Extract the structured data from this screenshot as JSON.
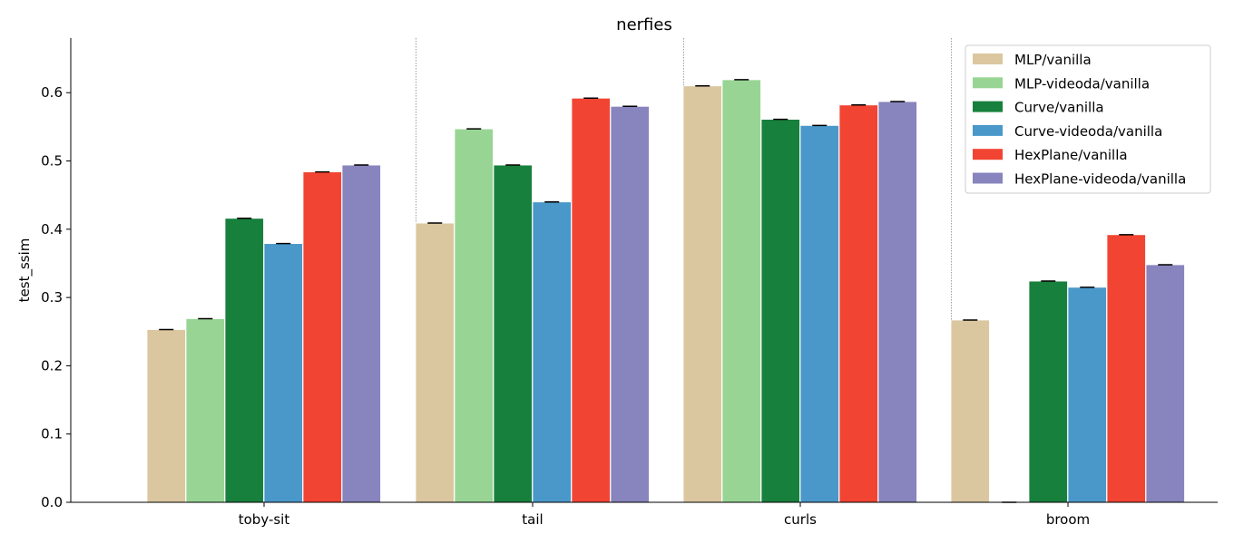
{
  "chart_data": {
    "type": "bar",
    "title": "nerfies",
    "xlabel": "",
    "ylabel": "test_ssim",
    "ylim": [
      0,
      0.68
    ],
    "yticks": [
      "0.0",
      "0.1",
      "0.2",
      "0.3",
      "0.4",
      "0.5",
      "0.6"
    ],
    "categories": [
      "toby-sit",
      "tail",
      "curls",
      "broom"
    ],
    "series": [
      {
        "name": "MLP/vanilla",
        "color": "#dbc79f",
        "values": [
          0.253,
          0.409,
          0.61,
          0.267
        ]
      },
      {
        "name": "MLP-videoda/vanilla",
        "color": "#98d594",
        "values": [
          0.269,
          0.547,
          0.619,
          0.0
        ]
      },
      {
        "name": "Curve/vanilla",
        "color": "#17803d",
        "values": [
          0.416,
          0.494,
          0.561,
          0.324
        ]
      },
      {
        "name": "Curve-videoda/vanilla",
        "color": "#4a98c9",
        "values": [
          0.379,
          0.44,
          0.552,
          0.315
        ]
      },
      {
        "name": "HexPlane/vanilla",
        "color": "#f14432",
        "values": [
          0.484,
          0.592,
          0.582,
          0.392
        ]
      },
      {
        "name": "HexPlane-videoda/vanilla",
        "color": "#8884bd",
        "values": [
          0.494,
          0.58,
          0.587,
          0.348
        ]
      }
    ],
    "grid": false,
    "group_separators": true,
    "error_bars": true,
    "legend_position": "top-right"
  }
}
